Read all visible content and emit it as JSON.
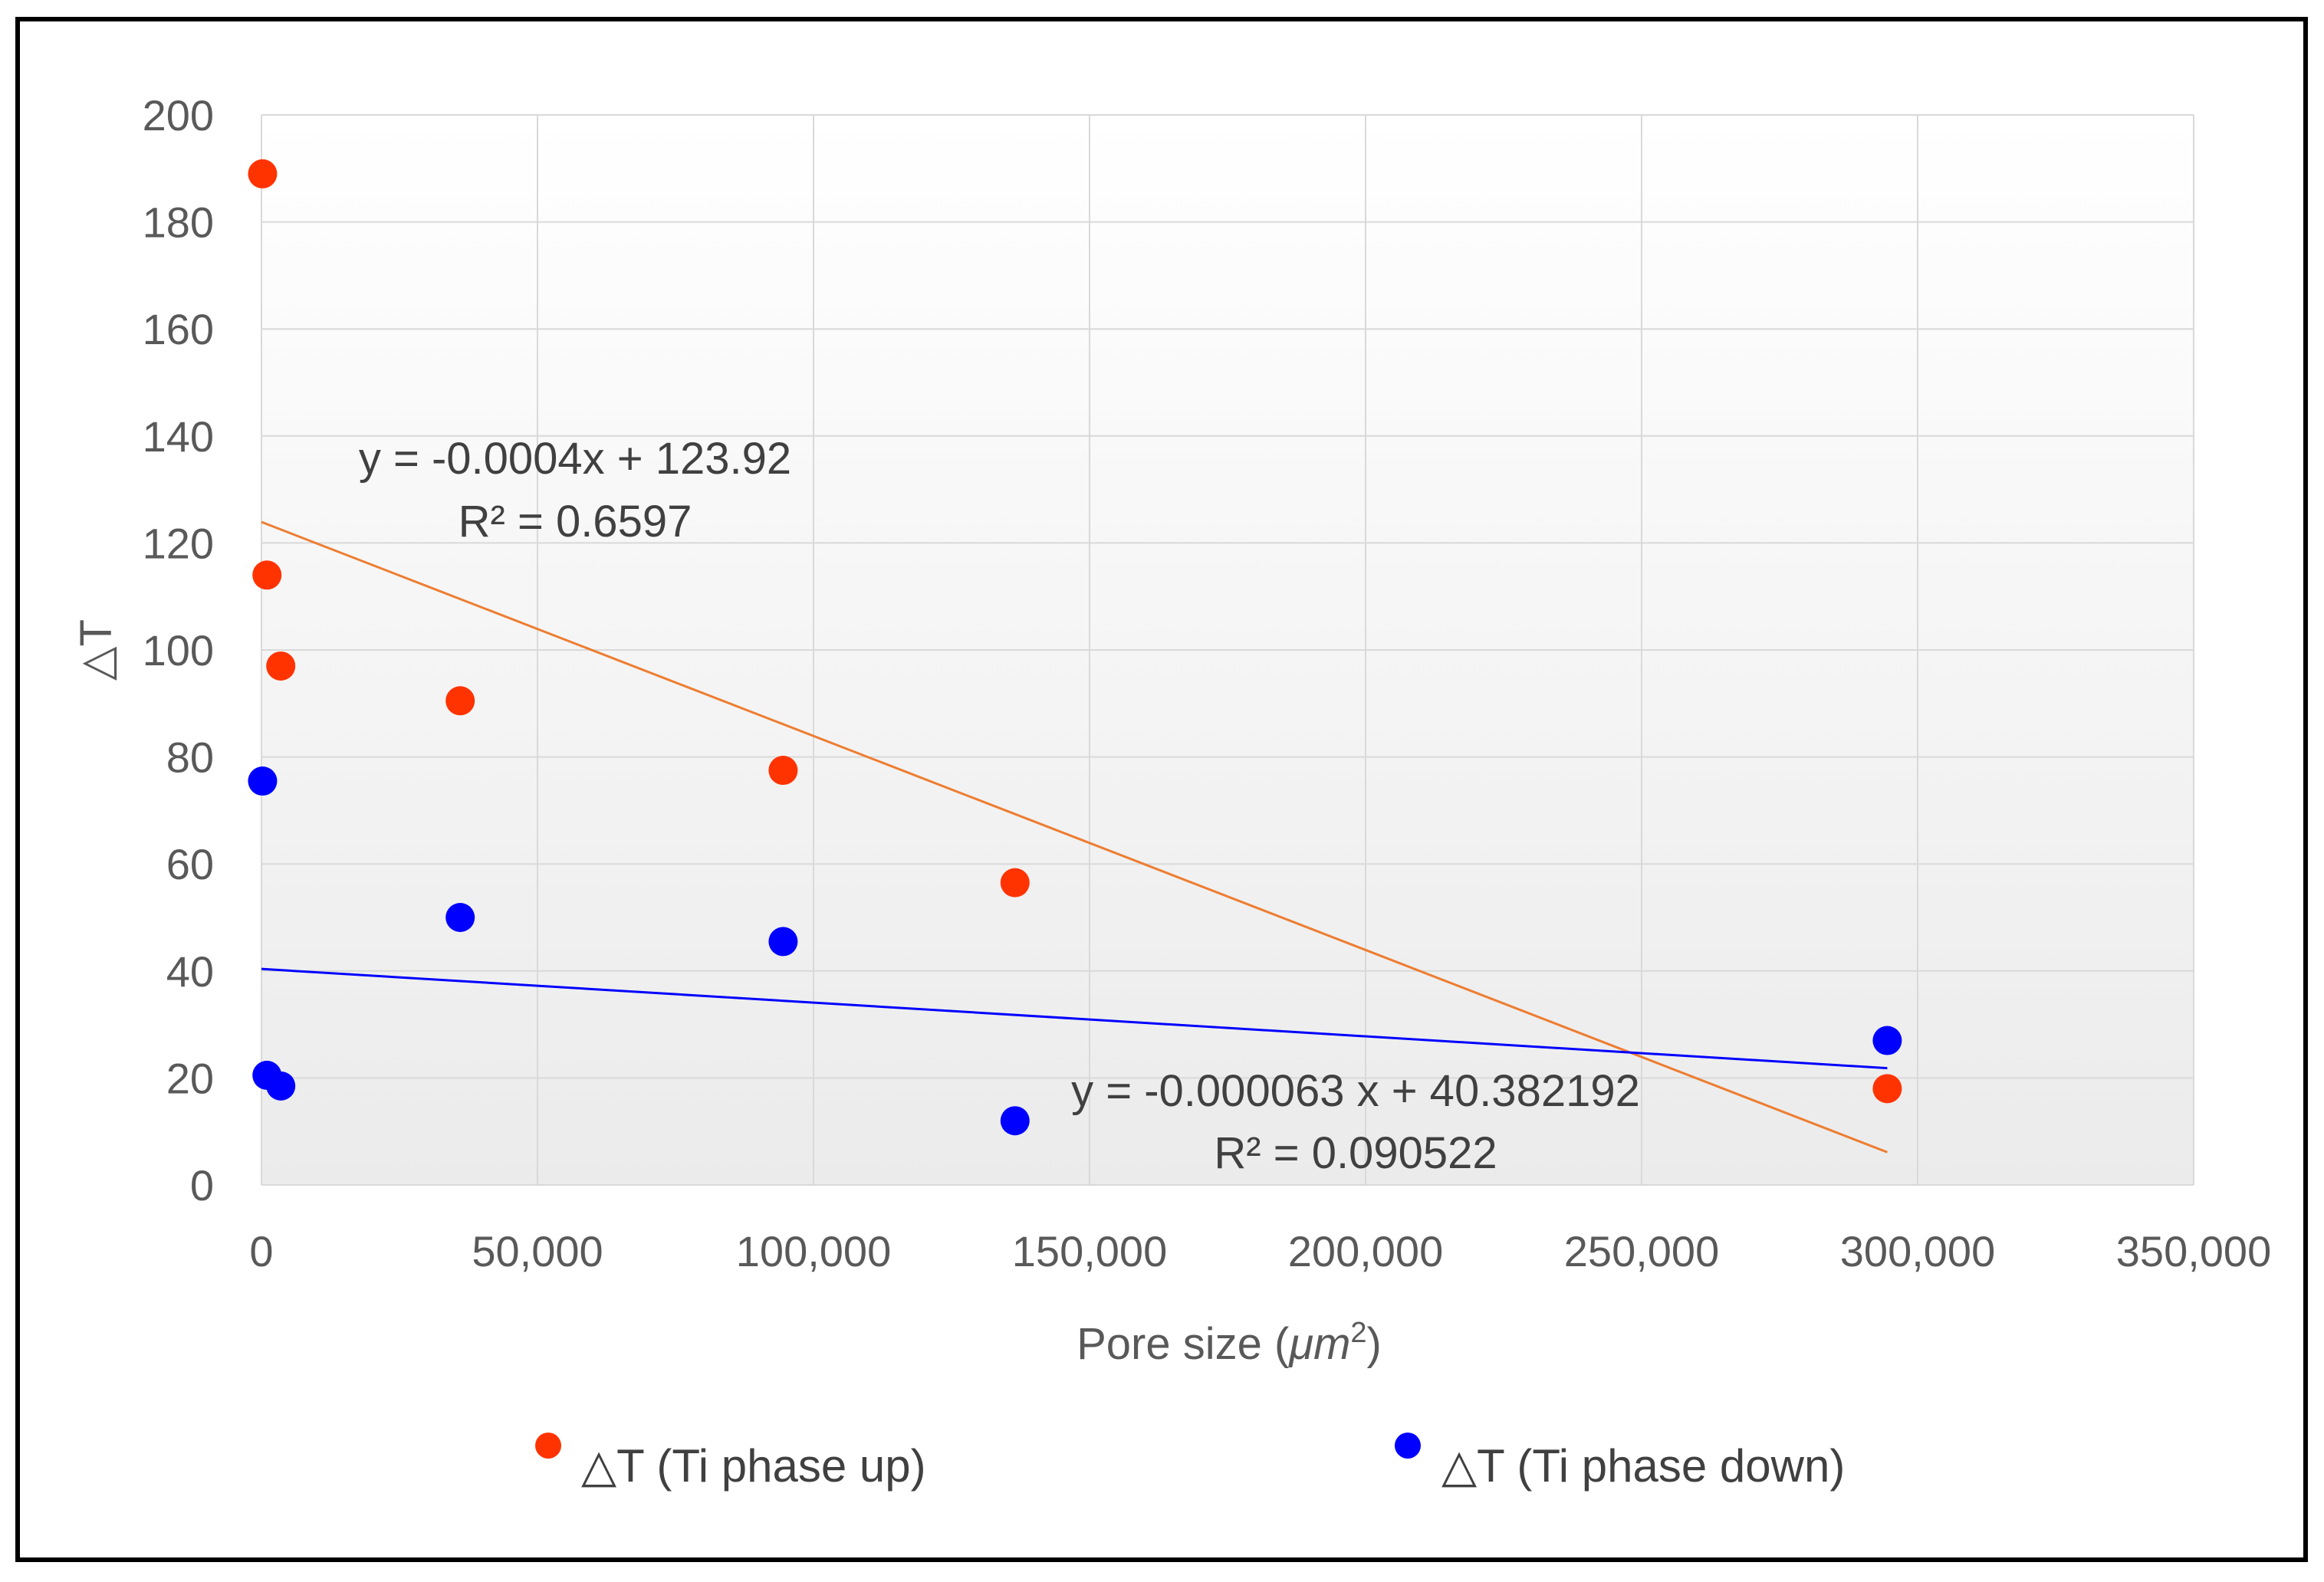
{
  "chart_data": {
    "type": "scatter",
    "title": "",
    "xlabel": "Pore size (μm²)",
    "xlabel_parts": {
      "base": "Pore size (",
      "unit": "μm",
      "sup": "2",
      "close": ")"
    },
    "ylabel": "△T",
    "xlim": [
      0,
      350000
    ],
    "ylim": [
      0,
      200
    ],
    "x_ticks": [
      0,
      50000,
      100000,
      150000,
      200000,
      250000,
      300000,
      350000
    ],
    "x_tick_labels": [
      "0",
      "50,000",
      "100,000",
      "150,000",
      "200,000",
      "250,000",
      "300,000",
      "350,000"
    ],
    "y_ticks": [
      0,
      20,
      40,
      60,
      80,
      100,
      120,
      140,
      160,
      180,
      200
    ],
    "y_tick_labels": [
      "0",
      "20",
      "40",
      "60",
      "80",
      "100",
      "120",
      "140",
      "160",
      "180",
      "200"
    ],
    "grid": true,
    "legend_position": "bottom",
    "series": [
      {
        "name": "△T (Ti phase up)",
        "color": "#FF3300",
        "points": [
          {
            "x": 200,
            "y": 189
          },
          {
            "x": 1000,
            "y": 114
          },
          {
            "x": 3500,
            "y": 97
          },
          {
            "x": 36000,
            "y": 90.5
          },
          {
            "x": 94500,
            "y": 77.5
          },
          {
            "x": 136500,
            "y": 56.5
          },
          {
            "x": 294500,
            "y": 18
          }
        ],
        "trendline": {
          "slope": -0.0004,
          "intercept": 123.92,
          "x_range": [
            0,
            294500
          ],
          "color": "#ED7D31",
          "equation": "y = -0.0004x + 123.92",
          "r2": "R² = 0.6597"
        }
      },
      {
        "name": "△T (Ti phase down)",
        "color": "#0000FF",
        "points": [
          {
            "x": 200,
            "y": 75.5
          },
          {
            "x": 1000,
            "y": 20.5
          },
          {
            "x": 3500,
            "y": 18.5
          },
          {
            "x": 36000,
            "y": 50
          },
          {
            "x": 94500,
            "y": 45.5
          },
          {
            "x": 136500,
            "y": 12
          },
          {
            "x": 294500,
            "y": 27
          }
        ],
        "trendline": {
          "slope": -6.3e-05,
          "intercept": 40.382192,
          "x_range": [
            0,
            294500
          ],
          "color": "#0000FF",
          "equation": "y = -0.000063 x + 40.382192",
          "r2": "R² = 0.090522"
        }
      }
    ]
  }
}
